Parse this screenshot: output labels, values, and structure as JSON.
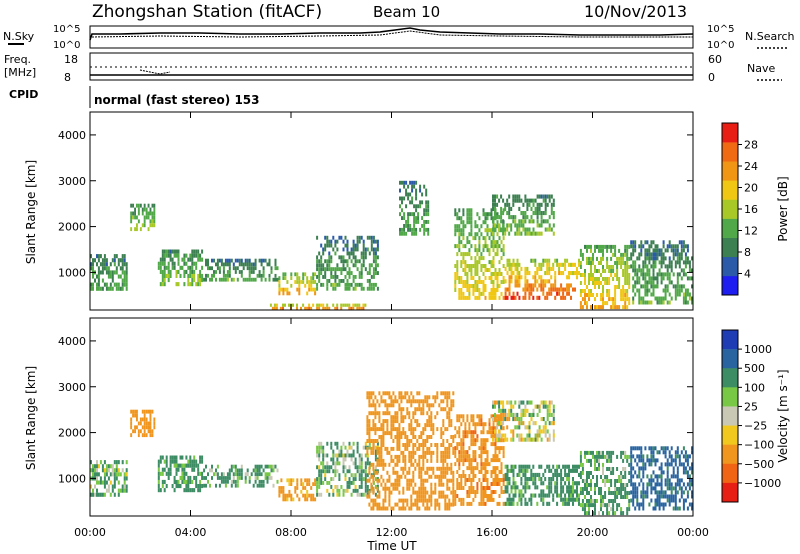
{
  "header": {
    "station": "Zhongshan Station (fitACF)",
    "beam": "Beam 10",
    "date": "10/Nov/2013"
  },
  "top_panel": {
    "left_label": "N.Sky",
    "right_label": "N.Search",
    "left_ticks": [
      "10^5",
      "10^0"
    ],
    "right_ticks": [
      "10^5",
      "10^0"
    ]
  },
  "freq_panel": {
    "left_label_1": "Freq.",
    "left_label_2": "[MHz]",
    "right_label": "Nave",
    "left_ticks": [
      "18",
      "8"
    ],
    "right_ticks": [
      "60",
      "0"
    ]
  },
  "cpid": {
    "label": "CPID",
    "text": "normal (fast stereo) 153"
  },
  "colors": {
    "power": [
      "#1e1ef0",
      "#2a5aa8",
      "#3c7f50",
      "#50a848",
      "#a8c828",
      "#f0c814",
      "#f09614",
      "#f06a14",
      "#e81e14"
    ],
    "velocity": [
      "#1e3cb4",
      "#2a64a0",
      "#3c8c64",
      "#78c846",
      "#c8c8b4",
      "#f0c81e",
      "#f0961e",
      "#f06414",
      "#e61e14"
    ]
  },
  "chart_data": [
    {
      "type": "heatmap",
      "panel": "power",
      "ylabel": "Slant Range [km]",
      "ylim": [
        180,
        4500
      ],
      "y_ticks": [
        "1000",
        "2000",
        "3000",
        "4000"
      ],
      "x_ticks": [
        "00:00",
        "04:00",
        "08:00",
        "12:00",
        "16:00",
        "20:00",
        "00:00"
      ],
      "colorbar": {
        "label": "Power [dB]",
        "ticks": [
          "4",
          "8",
          "12",
          "16",
          "20",
          "24",
          "28"
        ],
        "range": [
          0,
          30
        ]
      },
      "echo_regions": [
        {
          "t": [
            0.0,
            1.5
          ],
          "range": [
            600,
            1400
          ],
          "level": 10
        },
        {
          "t": [
            1.6,
            2.6
          ],
          "range": [
            1900,
            2500
          ],
          "level": 14
        },
        {
          "t": [
            2.7,
            4.5
          ],
          "range": [
            700,
            1500
          ],
          "level": 12
        },
        {
          "t": [
            4.5,
            7.5
          ],
          "range": [
            800,
            1300
          ],
          "level": 10
        },
        {
          "t": [
            7.5,
            9.0
          ],
          "range": [
            500,
            1000
          ],
          "level": 20
        },
        {
          "t": [
            9.0,
            11.5
          ],
          "range": [
            600,
            1800
          ],
          "level": 10
        },
        {
          "t": [
            12.3,
            13.5
          ],
          "range": [
            1800,
            3000
          ],
          "level": 10
        },
        {
          "t": [
            14.5,
            16.5
          ],
          "range": [
            400,
            2400
          ],
          "level": 16
        },
        {
          "t": [
            16.5,
            19.5
          ],
          "range": [
            400,
            1300
          ],
          "level": 24
        },
        {
          "t": [
            16.0,
            18.5
          ],
          "range": [
            1800,
            2700
          ],
          "level": 12
        },
        {
          "t": [
            19.5,
            21.5
          ],
          "range": [
            200,
            1600
          ],
          "level": 18
        },
        {
          "t": [
            21.5,
            24.0
          ],
          "range": [
            300,
            1700
          ],
          "level": 10
        },
        {
          "t": [
            7.0,
            11.0
          ],
          "range": [
            180,
            320
          ],
          "level": 26
        }
      ]
    },
    {
      "type": "heatmap",
      "panel": "velocity",
      "ylabel": "Slant Range [km]",
      "xlabel": "Time UT",
      "ylim": [
        180,
        4500
      ],
      "y_ticks": [
        "1000",
        "2000",
        "3000",
        "4000"
      ],
      "x_ticks": [
        "00:00",
        "04:00",
        "08:00",
        "12:00",
        "16:00",
        "20:00",
        "00:00"
      ],
      "colorbar": {
        "label": "Velocity [m s⁻¹]",
        "ticks": [
          "1000",
          "500",
          "100",
          "25",
          "−25",
          "−100",
          "−500",
          "−1000"
        ]
      },
      "echo_regions": [
        {
          "t": [
            0.0,
            1.5
          ],
          "range": [
            600,
            1400
          ],
          "vel": 100
        },
        {
          "t": [
            1.6,
            2.6
          ],
          "range": [
            1900,
            2500
          ],
          "vel": -300
        },
        {
          "t": [
            2.7,
            4.5
          ],
          "range": [
            700,
            1500
          ],
          "vel": 200
        },
        {
          "t": [
            4.5,
            7.5
          ],
          "range": [
            800,
            1300
          ],
          "vel": 150
        },
        {
          "t": [
            7.5,
            9.0
          ],
          "range": [
            500,
            1000
          ],
          "vel": -200
        },
        {
          "t": [
            9.0,
            11.5
          ],
          "range": [
            600,
            1800
          ],
          "vel": 100
        },
        {
          "t": [
            11.0,
            14.5
          ],
          "range": [
            300,
            2900
          ],
          "vel": -300
        },
        {
          "t": [
            14.5,
            16.5
          ],
          "range": [
            400,
            2400
          ],
          "vel": -400
        },
        {
          "t": [
            16.5,
            19.5
          ],
          "range": [
            400,
            1300
          ],
          "vel": 200
        },
        {
          "t": [
            16.0,
            18.5
          ],
          "range": [
            1800,
            2700
          ],
          "vel": 0
        },
        {
          "t": [
            19.5,
            21.5
          ],
          "range": [
            200,
            1600
          ],
          "vel": 150
        },
        {
          "t": [
            21.5,
            24.0
          ],
          "range": [
            300,
            1700
          ],
          "vel": 600
        }
      ]
    }
  ]
}
